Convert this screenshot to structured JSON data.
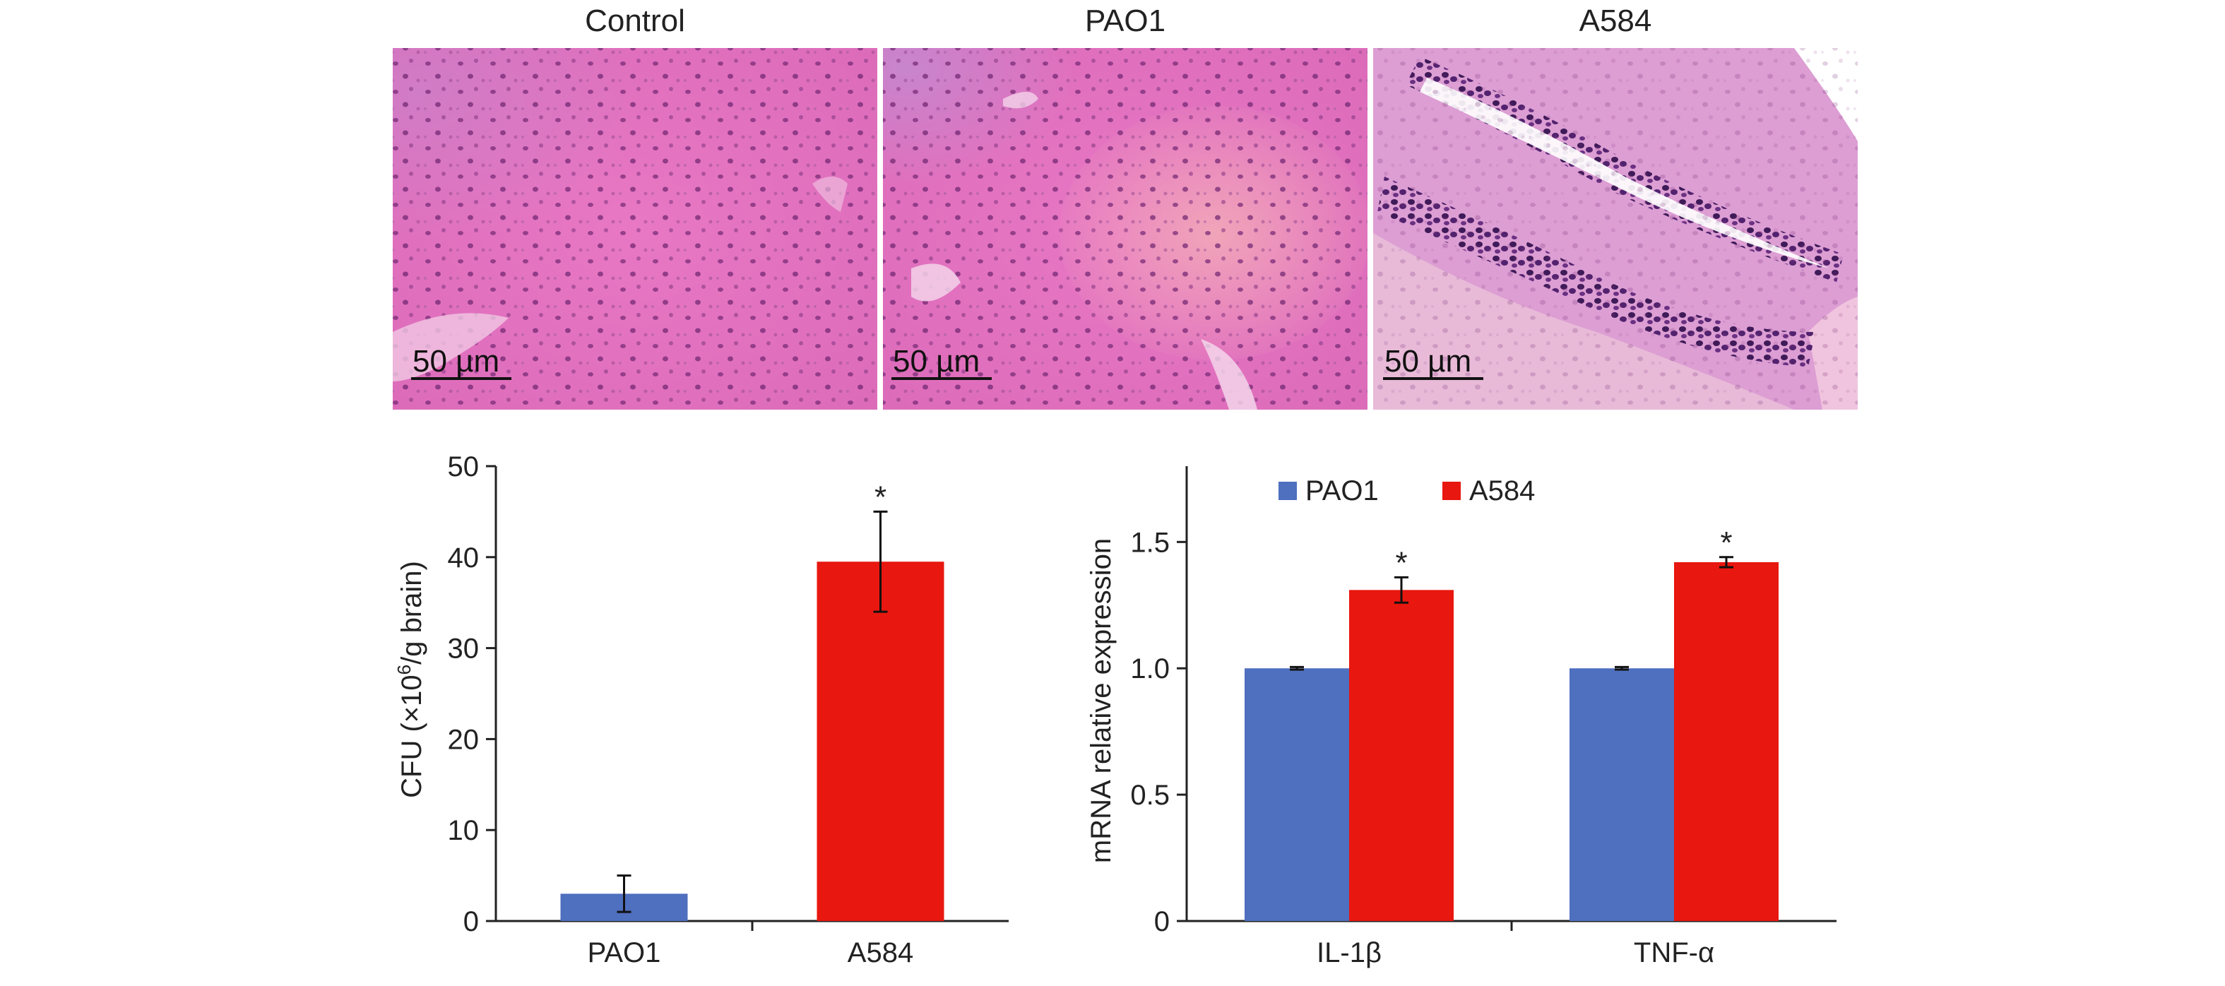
{
  "micrographs": [
    {
      "title": "Control",
      "scale_label": "50 µm"
    },
    {
      "title": "PAO1",
      "scale_label": "50 µm"
    },
    {
      "title": "A584",
      "scale_label": "50 µm"
    }
  ],
  "chart_data": [
    {
      "type": "bar",
      "categories": [
        "PAO1",
        "A584"
      ],
      "values": [
        3,
        39.5
      ],
      "error": [
        2,
        5.5
      ],
      "significance": [
        "",
        "*"
      ],
      "colors": [
        "#4f6fbf",
        "#e8170f"
      ],
      "ylabel_prefix": "CFU (×10",
      "ylabel_sup": "6",
      "ylabel_suffix": "/g brain)",
      "xlabel": "",
      "ylim": [
        0,
        50
      ],
      "yticks": [
        "0",
        "10",
        "20",
        "30",
        "40",
        "50"
      ],
      "grid": false,
      "legend": "none"
    },
    {
      "type": "bar",
      "categories": [
        "IL-1β",
        "TNF-α"
      ],
      "series": [
        {
          "name": "PAO1",
          "values": [
            1.0,
            1.0
          ],
          "error": [
            0.005,
            0.005
          ],
          "significance": [
            "",
            ""
          ],
          "color": "#4f6fbf"
        },
        {
          "name": "A584",
          "values": [
            1.31,
            1.42
          ],
          "error": [
            0.05,
            0.02
          ],
          "significance": [
            "*",
            "*"
          ],
          "color": "#e8170f"
        }
      ],
      "ylabel": "mRNA relative expression",
      "xlabel": "",
      "ylim": [
        0,
        1.8
      ],
      "yticks": [
        "0",
        "0.5",
        "1.0",
        "1.5"
      ],
      "grid": false,
      "legend": "top-left"
    }
  ]
}
